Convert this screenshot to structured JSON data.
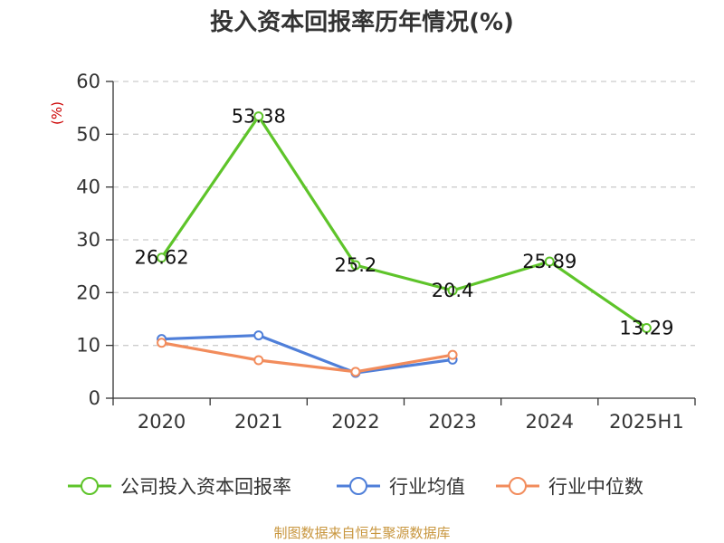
{
  "chart_data": {
    "type": "line",
    "title": "投入资本回报率历年情况(%)",
    "ylabel": "(%)",
    "categories": [
      "2020",
      "2021",
      "2022",
      "2023",
      "2024",
      "2025H1"
    ],
    "ylim": [
      0,
      60
    ],
    "yticks": [
      "0",
      "10",
      "20",
      "30",
      "40",
      "50",
      "60"
    ],
    "grid": true,
    "legend_position": "bottom",
    "series": [
      {
        "name": "公司投入资本回报率",
        "color": "#5ec42a",
        "values": [
          26.62,
          53.38,
          25.2,
          20.4,
          25.89,
          13.29
        ],
        "labels": [
          "26.62",
          "53.38",
          "25.2",
          "20.4",
          "25.89",
          "13.29"
        ]
      },
      {
        "name": "行业均值",
        "color": "#4f7fd9",
        "values": [
          11.2,
          11.9,
          4.8,
          7.3,
          null,
          null
        ]
      },
      {
        "name": "行业中位数",
        "color": "#f28c5c",
        "values": [
          10.5,
          7.2,
          5.0,
          8.2,
          null,
          null
        ]
      }
    ]
  },
  "footer": {
    "source": "制图数据来自恒生聚源数据库"
  }
}
